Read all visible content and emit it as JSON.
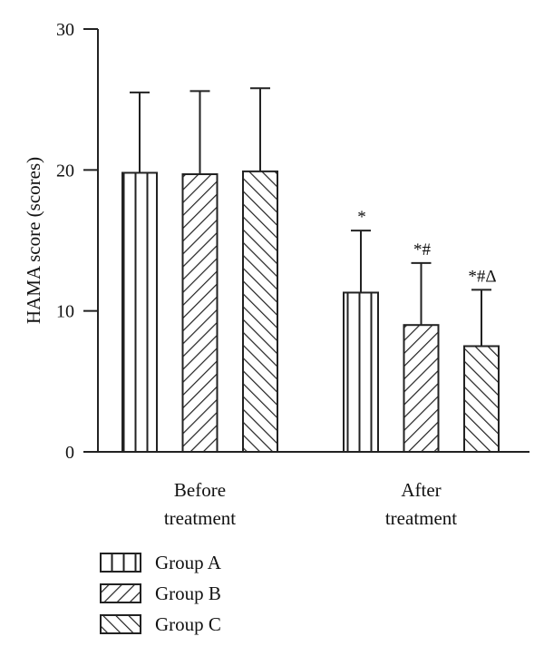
{
  "chart_data": {
    "type": "bar",
    "title": "",
    "xlabel": "",
    "ylabel": "HAMA score (scores)",
    "ylim": [
      0,
      30
    ],
    "yticks": [
      0,
      10,
      20,
      30
    ],
    "categories": [
      "Before treatment",
      "After treatment"
    ],
    "category_lines": [
      [
        "Before",
        "treatment"
      ],
      [
        "After",
        "treatment"
      ]
    ],
    "series": [
      {
        "name": "Group A",
        "pattern": "vertical-lines",
        "values": [
          19.8,
          11.3
        ],
        "errors": [
          5.7,
          4.4
        ],
        "annotations": [
          "",
          "*"
        ]
      },
      {
        "name": "Group B",
        "pattern": "diagonal-forward",
        "values": [
          19.7,
          9.0
        ],
        "errors": [
          5.9,
          4.4
        ],
        "annotations": [
          "",
          "*#"
        ]
      },
      {
        "name": "Group C",
        "pattern": "diagonal-backward",
        "values": [
          19.9,
          7.5
        ],
        "errors": [
          5.9,
          4.0
        ],
        "annotations": [
          "",
          "*#Δ"
        ]
      }
    ],
    "legend_position": "bottom-left",
    "grid": false,
    "colors": {
      "stroke": "#222222",
      "fill": "#ffffff"
    }
  }
}
